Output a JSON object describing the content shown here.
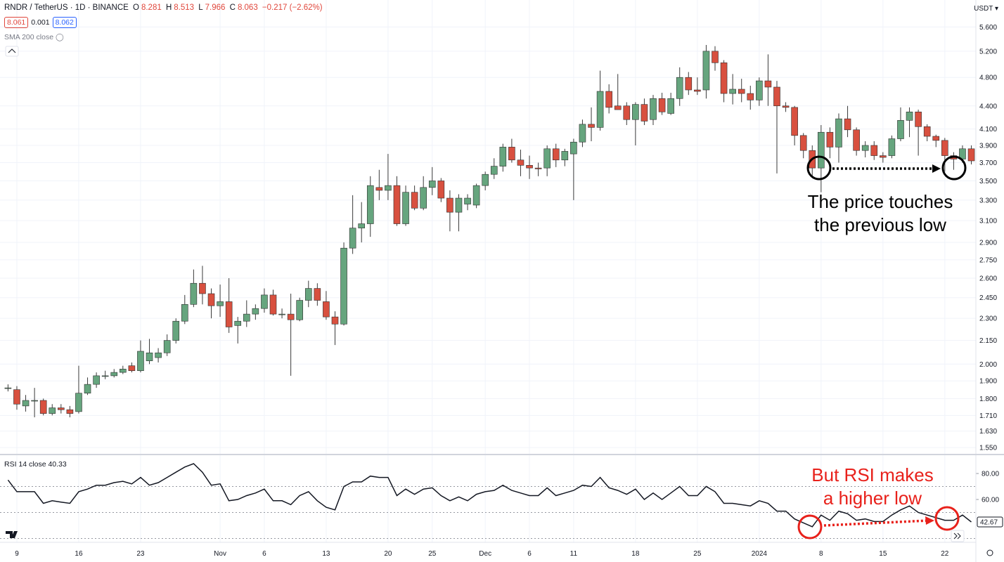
{
  "header": {
    "symbol": "RNDR / TetherUS · 1D · BINANCE",
    "ohlc": [
      {
        "key": "O",
        "value": "8.281"
      },
      {
        "key": "H",
        "value": "8.513"
      },
      {
        "key": "L",
        "value": "7.966"
      },
      {
        "key": "C",
        "value": "8.063"
      }
    ],
    "change": "−0.217 (−2.62%)",
    "bid": "8.061",
    "spread": "0.001",
    "ask": "8.062",
    "sma": "SMA 200 close",
    "currency": "USDT"
  },
  "chart_data": {
    "type": "candlestick",
    "log_scale": true,
    "grid": true,
    "up_color": "#66a57e",
    "down_color": "#d8503f",
    "wick_color": "#3a3a3a",
    "categories": [
      null,
      "9",
      null,
      null,
      null,
      null,
      null,
      null,
      "16",
      null,
      null,
      null,
      null,
      null,
      null,
      "23",
      null,
      null,
      null,
      null,
      null,
      null,
      null,
      null,
      "Nov",
      null,
      null,
      null,
      null,
      "6",
      null,
      null,
      null,
      null,
      null,
      null,
      "13",
      null,
      null,
      null,
      null,
      null,
      null,
      "20",
      null,
      null,
      null,
      null,
      "25",
      null,
      null,
      null,
      null,
      null,
      "Dec",
      null,
      null,
      null,
      null,
      "6",
      null,
      null,
      null,
      null,
      "11",
      null,
      null,
      null,
      null,
      null,
      null,
      "18",
      null,
      null,
      null,
      null,
      null,
      null,
      "25",
      null,
      null,
      null,
      null,
      null,
      null,
      "2024",
      null,
      null,
      null,
      null,
      null,
      null,
      "8",
      null,
      null,
      null,
      null,
      null,
      null,
      "15",
      null,
      null,
      null,
      null,
      null,
      null,
      "22",
      null,
      null,
      null
    ],
    "open": [
      1.86,
      1.85,
      1.76,
      1.79,
      1.79,
      1.72,
      1.75,
      1.74,
      1.73,
      1.83,
      1.88,
      1.93,
      1.93,
      1.95,
      1.99,
      1.96,
      2.02,
      2.04,
      2.07,
      2.15,
      2.28,
      2.4,
      2.56,
      2.48,
      2.39,
      2.42,
      2.25,
      2.28,
      2.33,
      2.37,
      2.47,
      2.33,
      2.33,
      2.29,
      2.43,
      2.52,
      2.42,
      2.31,
      2.26,
      2.85,
      3.03,
      3.07,
      3.43,
      3.4,
      3.45,
      3.07,
      3.38,
      3.22,
      3.43,
      3.5,
      3.32,
      3.18,
      3.26,
      3.25,
      3.45,
      3.57,
      3.66,
      3.88,
      3.73,
      3.67,
      3.64,
      3.64,
      3.86,
      3.73,
      3.8,
      3.94,
      4.16,
      4.12,
      4.6,
      4.4,
      4.4,
      4.22,
      4.42,
      4.22,
      4.5,
      4.3,
      4.5,
      4.8,
      4.62,
      4.62,
      5.2,
      5.02,
      4.57,
      4.63,
      4.57,
      4.48,
      4.75,
      4.66,
      4.4,
      4.38,
      4.02,
      3.84,
      3.64,
      4.06,
      3.88,
      4.23,
      4.09,
      3.84,
      3.9,
      3.78,
      3.78,
      3.98,
      4.21,
      4.32,
      4.13,
      4.01,
      3.96,
      3.78,
      3.74,
      3.86
    ],
    "high": [
      1.88,
      1.87,
      1.82,
      1.86,
      1.8,
      1.77,
      1.77,
      1.76,
      1.99,
      1.92,
      1.95,
      1.96,
      1.97,
      1.99,
      2.01,
      2.15,
      2.16,
      2.1,
      2.19,
      2.3,
      2.47,
      2.67,
      2.7,
      2.52,
      2.55,
      2.6,
      2.31,
      2.43,
      2.4,
      2.52,
      2.51,
      2.37,
      2.48,
      2.45,
      2.58,
      2.56,
      2.5,
      2.35,
      2.9,
      3.35,
      3.28,
      3.55,
      3.62,
      3.8,
      3.55,
      3.45,
      3.45,
      3.55,
      3.65,
      3.53,
      3.4,
      3.36,
      3.36,
      3.47,
      3.6,
      3.75,
      3.92,
      3.98,
      3.85,
      3.78,
      3.7,
      3.9,
      3.92,
      3.86,
      3.98,
      4.22,
      4.38,
      4.9,
      4.7,
      4.85,
      4.45,
      4.45,
      4.5,
      4.55,
      4.58,
      4.58,
      4.95,
      4.88,
      4.8,
      5.3,
      5.28,
      5.06,
      4.85,
      4.78,
      4.68,
      4.8,
      5.15,
      4.75,
      4.45,
      4.4,
      4.05,
      3.9,
      4.15,
      4.12,
      4.3,
      4.4,
      4.12,
      3.95,
      3.95,
      3.82,
      4.02,
      4.38,
      4.38,
      4.35,
      4.16,
      4.03,
      3.99,
      3.82,
      3.9,
      3.9
    ],
    "low": [
      1.84,
      1.74,
      1.73,
      1.7,
      1.71,
      1.71,
      1.72,
      1.7,
      1.72,
      1.82,
      1.86,
      1.91,
      1.92,
      1.94,
      1.95,
      1.95,
      2.0,
      2.01,
      2.05,
      2.13,
      2.26,
      2.38,
      2.4,
      2.3,
      2.31,
      2.2,
      2.13,
      2.24,
      2.29,
      2.34,
      2.32,
      2.3,
      1.93,
      2.28,
      2.38,
      2.39,
      2.29,
      2.12,
      2.25,
      2.8,
      2.9,
      2.95,
      3.3,
      3.3,
      3.05,
      3.05,
      3.2,
      3.2,
      3.35,
      3.28,
      3.0,
      3.0,
      3.2,
      3.22,
      3.4,
      3.52,
      3.6,
      3.7,
      3.55,
      3.52,
      3.55,
      3.55,
      3.65,
      3.66,
      3.3,
      3.88,
      3.95,
      4.08,
      4.3,
      4.35,
      4.15,
      3.9,
      4.15,
      4.15,
      4.28,
      4.28,
      4.4,
      4.55,
      4.55,
      4.5,
      4.9,
      4.45,
      4.42,
      4.45,
      4.35,
      4.4,
      4.4,
      3.58,
      4.32,
      3.9,
      3.75,
      3.55,
      3.38,
      3.75,
      3.7,
      4.0,
      3.78,
      3.76,
      3.73,
      3.7,
      3.75,
      3.95,
      4.0,
      3.78,
      3.95,
      3.88,
      3.6,
      3.62,
      3.7,
      3.68
    ],
    "close": [
      1.86,
      1.77,
      1.79,
      1.79,
      1.72,
      1.75,
      1.74,
      1.72,
      1.83,
      1.88,
      1.93,
      1.93,
      1.95,
      1.97,
      1.96,
      2.08,
      2.07,
      2.07,
      2.15,
      2.28,
      2.4,
      2.56,
      2.48,
      2.39,
      2.42,
      2.24,
      2.28,
      2.33,
      2.37,
      2.47,
      2.33,
      2.33,
      2.29,
      2.43,
      2.52,
      2.43,
      2.31,
      2.26,
      2.85,
      3.03,
      3.07,
      3.45,
      3.4,
      3.45,
      3.07,
      3.38,
      3.22,
      3.43,
      3.5,
      3.32,
      3.18,
      3.32,
      3.32,
      3.45,
      3.57,
      3.66,
      3.88,
      3.73,
      3.67,
      3.64,
      3.63,
      3.86,
      3.73,
      3.83,
      3.94,
      4.16,
      4.12,
      4.6,
      4.38,
      4.35,
      4.22,
      4.42,
      4.2,
      4.5,
      4.32,
      4.5,
      4.8,
      4.62,
      4.6,
      5.2,
      5.02,
      4.57,
      4.63,
      4.57,
      4.48,
      4.75,
      4.66,
      4.4,
      4.38,
      4.02,
      3.84,
      3.64,
      4.06,
      3.88,
      4.23,
      4.09,
      3.84,
      3.9,
      3.78,
      3.76,
      3.98,
      4.21,
      4.32,
      4.13,
      4.01,
      3.96,
      3.78,
      3.74,
      3.86,
      3.72
    ],
    "ylim": [
      1.524,
      6.08
    ],
    "yticks": [
      {
        "value": 1.55,
        "label": "1.550"
      },
      {
        "value": 1.63,
        "label": "1.630"
      },
      {
        "value": 1.71,
        "label": "1.710"
      },
      {
        "value": 1.8,
        "label": "1.800"
      },
      {
        "value": 1.9,
        "label": "1.900"
      },
      {
        "value": 2.0,
        "label": "2.000"
      },
      {
        "value": 2.15,
        "label": "2.150"
      },
      {
        "value": 2.3,
        "label": "2.300"
      },
      {
        "value": 2.45,
        "label": "2.450"
      },
      {
        "value": 2.6,
        "label": "2.600"
      },
      {
        "value": 2.75,
        "label": "2.750"
      },
      {
        "value": 2.9,
        "label": "2.900"
      },
      {
        "value": 3.1,
        "label": "3.100"
      },
      {
        "value": 3.3,
        "label": "3.300"
      },
      {
        "value": 3.5,
        "label": "3.500"
      },
      {
        "value": 3.7,
        "label": "3.700"
      },
      {
        "value": 3.9,
        "label": "3.900"
      },
      {
        "value": 4.1,
        "label": "4.100"
      },
      {
        "value": 4.4,
        "label": "4.400"
      },
      {
        "value": 4.8,
        "label": "4.800"
      },
      {
        "value": 5.2,
        "label": "5.200"
      },
      {
        "value": 5.6,
        "label": "5.600"
      }
    ],
    "indicator": {
      "name": "RSI 14 close",
      "header_value": "40.33",
      "color": "#131722",
      "level_color": "#9598a1",
      "values": [
        75,
        66,
        66,
        66,
        57,
        59,
        58,
        57,
        66,
        68,
        71,
        71,
        73,
        74,
        72,
        77,
        71,
        73,
        77,
        81,
        85,
        87.6,
        81,
        71,
        72,
        59,
        60,
        63,
        65,
        68,
        59,
        59,
        56,
        63,
        66,
        59,
        54,
        52,
        70,
        73.5,
        73.5,
        78,
        77,
        77,
        63,
        68,
        64,
        68,
        69,
        63,
        59,
        62,
        59,
        64,
        66,
        67,
        71,
        67,
        65,
        63,
        63,
        69,
        63,
        65,
        67,
        71,
        70,
        77,
        69,
        67,
        64,
        68,
        60,
        65,
        60,
        65,
        70,
        63,
        63,
        70,
        66,
        57,
        57,
        56,
        55,
        59,
        57,
        51,
        51,
        45,
        42,
        39,
        48,
        44,
        51,
        49,
        44,
        45,
        43,
        43,
        48,
        52,
        55,
        50,
        48,
        46,
        44,
        44,
        48,
        42.67
      ],
      "ylim": [
        27,
        93
      ],
      "yticks": [
        {
          "value": 60,
          "label": "60.00"
        },
        {
          "value": 80,
          "label": "80.00"
        }
      ],
      "levels": [
        30,
        50,
        70
      ]
    },
    "annotations": [
      {
        "lines": [
          "The price touches",
          "the previous low"
        ],
        "color": "#000000"
      },
      {
        "lines": [
          "But RSI makes",
          "a higher low"
        ],
        "color": "#e8211b"
      }
    ]
  }
}
